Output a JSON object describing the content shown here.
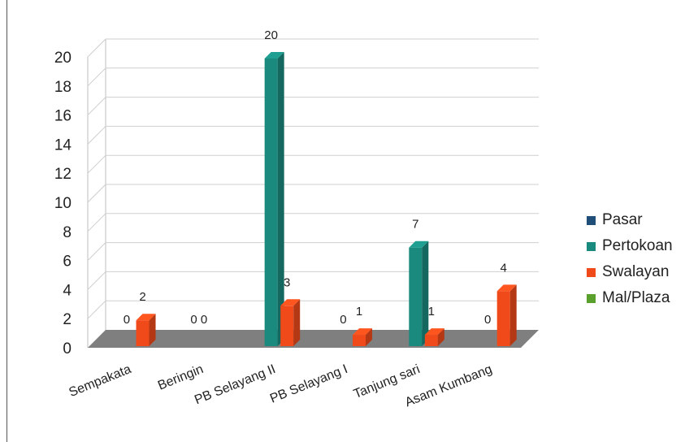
{
  "chart_data": {
    "type": "bar",
    "title": "",
    "xlabel": "",
    "ylabel": "",
    "ylim": [
      0,
      20
    ],
    "yticks": [
      0,
      2,
      4,
      6,
      8,
      10,
      12,
      14,
      16,
      18,
      20
    ],
    "grid": true,
    "legend_position": "right",
    "categories": [
      "Sempakata",
      "Beringin",
      "PB Selayang II",
      "PB Selayang I",
      "Tanjung sari",
      "Asam Kumbang"
    ],
    "series": [
      {
        "name": "Pasar",
        "color": "#1f4e79",
        "values": [
          0,
          0,
          0,
          0,
          0,
          0
        ]
      },
      {
        "name": "Pertokoan",
        "color": "#1a8a7e",
        "values": [
          0,
          0,
          20,
          0,
          7,
          0
        ]
      },
      {
        "name": "Swalayan",
        "color": "#f04a1a",
        "values": [
          2,
          0,
          3,
          1,
          1,
          4
        ]
      },
      {
        "name": "Mal/Plaza",
        "color": "#5aa02c",
        "values": [
          0,
          0,
          0,
          0,
          0,
          0
        ]
      }
    ],
    "data_labels": [
      {
        "category": 0,
        "text": "0",
        "series": "Pertokoan"
      },
      {
        "category": 0,
        "text": "2",
        "series": "Swalayan"
      },
      {
        "category": 1,
        "text": "0 0",
        "series": "Pertokoan"
      },
      {
        "category": 2,
        "text": "20",
        "series": "Pertokoan"
      },
      {
        "category": 2,
        "text": "3",
        "series": "Swalayan"
      },
      {
        "category": 3,
        "text": "0",
        "series": "Pertokoan"
      },
      {
        "category": 3,
        "text": "1",
        "series": "Swalayan"
      },
      {
        "category": 4,
        "text": "7",
        "series": "Pertokoan"
      },
      {
        "category": 4,
        "text": "1",
        "series": "Swalayan"
      },
      {
        "category": 5,
        "text": "0",
        "series": "Pertokoan"
      },
      {
        "category": 5,
        "text": "4",
        "series": "Swalayan"
      }
    ]
  }
}
